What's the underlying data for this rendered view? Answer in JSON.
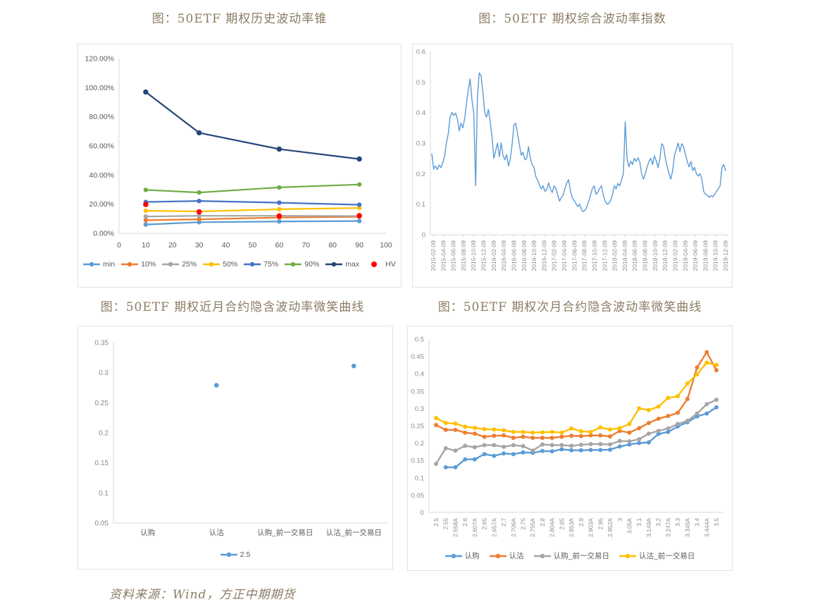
{
  "source_note": "资料来源：Wind，方正中期期货",
  "colors": {
    "title_text": "#8B7B63",
    "axis_label": "#595959",
    "tick_label": "#8C8C8C",
    "axis_line": "#D9D9D9",
    "box_border": "#E2E2E2",
    "accent_blue": "#5B9BD5",
    "accent_orange": "#ED7D31",
    "accent_gray": "#A5A5A5",
    "accent_yellow": "#FFC000",
    "accent_dark_blue": "#4472C4",
    "accent_green": "#70AD47",
    "accent_navy": "#264478",
    "accent_red": "#FF0000"
  },
  "chart_data": [
    {
      "type": "line",
      "title": "图：50ETF 期权历史波动率锥",
      "x": [
        10,
        30,
        60,
        90
      ],
      "x_axis": {
        "min": 0,
        "max": 100,
        "tick_step": 10
      },
      "y_axis": {
        "min": 0,
        "max": 1.2,
        "tick_step": 0.2,
        "format": "percent"
      },
      "grid": false,
      "legend_position": "bottom",
      "series": [
        {
          "name": "min",
          "color": "#5B9BD5",
          "values": [
            0.06,
            0.076,
            0.081,
            0.084
          ]
        },
        {
          "name": "10%",
          "color": "#ED7D31",
          "values": [
            0.09,
            0.096,
            0.108,
            0.113
          ]
        },
        {
          "name": "25%",
          "color": "#A5A5A5",
          "values": [
            0.115,
            0.12,
            0.12,
            0.118
          ]
        },
        {
          "name": "50%",
          "color": "#FFC000",
          "values": [
            0.155,
            0.15,
            0.165,
            0.174
          ]
        },
        {
          "name": "75%",
          "color": "#4472C4",
          "values": [
            0.215,
            0.222,
            0.21,
            0.196
          ]
        },
        {
          "name": "90%",
          "color": "#70AD47",
          "values": [
            0.298,
            0.28,
            0.315,
            0.335
          ]
        },
        {
          "name": "max",
          "color": "#264478",
          "values": [
            0.97,
            0.69,
            0.578,
            0.51
          ]
        },
        {
          "name": "HV",
          "color": "#FF0000",
          "markers_only": true,
          "values": [
            0.198,
            0.147,
            0.119,
            0.121
          ]
        }
      ]
    },
    {
      "type": "line",
      "title": "图：50ETF 期权综合波动率指数",
      "y_axis": {
        "min": 0,
        "max": 0.6,
        "tick_step": 0.1,
        "format": "number"
      },
      "grid": false,
      "legend_position": "none",
      "x_tick_labels": [
        "2015-02-09",
        "2015-04-09",
        "2015-06-09",
        "2015-08-09",
        "2015-10-09",
        "2015-12-09",
        "2016-02-09",
        "2016-04-09",
        "2016-06-09",
        "2016-08-09",
        "2016-10-09",
        "2016-12-09",
        "2017-02-09",
        "2017-04-09",
        "2017-06-09",
        "2017-08-09",
        "2017-10-09",
        "2017-12-09",
        "2018-02-09",
        "2018-04-09",
        "2018-06-09",
        "2018-08-09",
        "2018-10-09",
        "2018-12-09",
        "2019-02-09",
        "2019-04-09",
        "2019-06-09",
        "2019-08-09",
        "2019-10-09",
        "2019-12-09"
      ],
      "series": [
        {
          "name": "",
          "color": "#5B9BD5",
          "values": [
            0.265,
            0.215,
            0.225,
            0.213,
            0.228,
            0.22,
            0.235,
            0.258,
            0.3,
            0.33,
            0.385,
            0.4,
            0.39,
            0.398,
            0.38,
            0.34,
            0.365,
            0.35,
            0.38,
            0.43,
            0.475,
            0.51,
            0.44,
            0.4,
            0.16,
            0.455,
            0.53,
            0.52,
            0.465,
            0.4,
            0.385,
            0.41,
            0.37,
            0.32,
            0.25,
            0.275,
            0.3,
            0.255,
            0.3,
            0.26,
            0.245,
            0.262,
            0.225,
            0.248,
            0.295,
            0.36,
            0.365,
            0.33,
            0.295,
            0.26,
            0.27,
            0.245,
            0.25,
            0.288,
            0.25,
            0.23,
            0.22,
            0.19,
            0.178,
            0.162,
            0.15,
            0.16,
            0.142,
            0.148,
            0.17,
            0.15,
            0.138,
            0.16,
            0.152,
            0.13,
            0.11,
            0.122,
            0.13,
            0.152,
            0.17,
            0.18,
            0.142,
            0.12,
            0.112,
            0.102,
            0.092,
            0.1,
            0.082,
            0.075,
            0.08,
            0.092,
            0.11,
            0.13,
            0.152,
            0.16,
            0.132,
            0.14,
            0.152,
            0.16,
            0.13,
            0.11,
            0.1,
            0.102,
            0.112,
            0.132,
            0.16,
            0.15,
            0.168,
            0.16,
            0.18,
            0.2,
            0.37,
            0.25,
            0.222,
            0.24,
            0.23,
            0.25,
            0.24,
            0.252,
            0.238,
            0.2,
            0.182,
            0.2,
            0.222,
            0.24,
            0.25,
            0.23,
            0.258,
            0.242,
            0.22,
            0.25,
            0.298,
            0.29,
            0.25,
            0.222,
            0.2,
            0.182,
            0.21,
            0.26,
            0.28,
            0.3,
            0.272,
            0.298,
            0.288,
            0.262,
            0.24,
            0.222,
            0.24,
            0.21,
            0.22,
            0.2,
            0.192,
            0.2,
            0.182,
            0.142,
            0.132,
            0.13,
            0.122,
            0.128,
            0.124,
            0.132,
            0.142,
            0.15,
            0.16,
            0.22,
            0.23,
            0.21
          ]
        }
      ]
    },
    {
      "type": "scatter",
      "title": "图：50ETF 期权近月合约隐含波动率微笑曲线",
      "categories": [
        "认购",
        "认沽",
        "认购_前一交易日",
        "认沽_前一交易日"
      ],
      "y_axis": {
        "min": 0.05,
        "max": 0.35,
        "tick_step": 0.05,
        "format": "number"
      },
      "grid": false,
      "legend_position": "bottom",
      "series": [
        {
          "name": "2.5",
          "color": "#5B9BD5",
          "values": [
            null,
            0.279,
            null,
            0.311
          ]
        }
      ]
    },
    {
      "type": "line",
      "title": "图：50ETF 期权次月合约隐含波动率微笑曲线",
      "categories": [
        "2.5",
        "2.55",
        "2.558A",
        "2.6",
        "2.607A",
        "2.65",
        "2.657A",
        "2.7",
        "2.706A",
        "2.75",
        "2.755A",
        "2.8",
        "2.804A",
        "2.85",
        "2.853A",
        "2.9",
        "2.903A",
        "2.95",
        "2.952A",
        "3",
        "3.05A",
        "3.1",
        "3.149A",
        "3.2",
        "3.247A",
        "3.3",
        "3.345A",
        "3.4",
        "3.444A",
        "3.5"
      ],
      "y_axis": {
        "min": 0,
        "max": 0.5,
        "tick_step": 0.05,
        "format": "number"
      },
      "grid": false,
      "legend_position": "bottom",
      "series": [
        {
          "name": "认购",
          "color": "#5B9BD5",
          "values": [
            null,
            0.13,
            0.13,
            0.153,
            0.153,
            0.168,
            0.163,
            0.17,
            0.168,
            0.173,
            0.172,
            0.177,
            0.176,
            0.182,
            0.179,
            0.179,
            0.18,
            0.18,
            0.181,
            0.19,
            0.196,
            0.2,
            0.202,
            0.226,
            0.232,
            0.248,
            0.26,
            0.277,
            0.285,
            0.303
          ]
        },
        {
          "name": "认沽",
          "color": "#ED7D31",
          "values": [
            0.252,
            0.238,
            0.238,
            0.23,
            0.227,
            0.218,
            0.221,
            0.222,
            0.215,
            0.218,
            0.215,
            0.215,
            0.215,
            0.218,
            0.221,
            0.22,
            0.222,
            0.222,
            0.219,
            0.235,
            0.23,
            0.243,
            0.258,
            0.27,
            0.278,
            0.287,
            0.327,
            0.418,
            0.462,
            0.41
          ]
        },
        {
          "name": "认购_前一交易日",
          "color": "#A5A5A5",
          "values": [
            0.14,
            0.185,
            0.178,
            0.192,
            0.188,
            0.194,
            0.194,
            0.189,
            0.194,
            0.191,
            0.178,
            0.196,
            0.194,
            0.194,
            0.192,
            0.195,
            0.197,
            0.197,
            0.196,
            0.206,
            0.205,
            0.211,
            0.227,
            0.235,
            0.242,
            0.255,
            0.264,
            0.285,
            0.312,
            0.325
          ]
        },
        {
          "name": "认沽_前一交易日",
          "color": "#FFC000",
          "values": [
            0.272,
            0.258,
            0.256,
            0.247,
            0.244,
            0.24,
            0.239,
            0.237,
            0.232,
            0.232,
            0.23,
            0.231,
            0.232,
            0.23,
            0.242,
            0.234,
            0.232,
            0.245,
            0.239,
            0.243,
            0.255,
            0.3,
            0.295,
            0.305,
            0.33,
            0.335,
            0.372,
            0.398,
            0.432,
            0.425
          ]
        }
      ]
    }
  ]
}
